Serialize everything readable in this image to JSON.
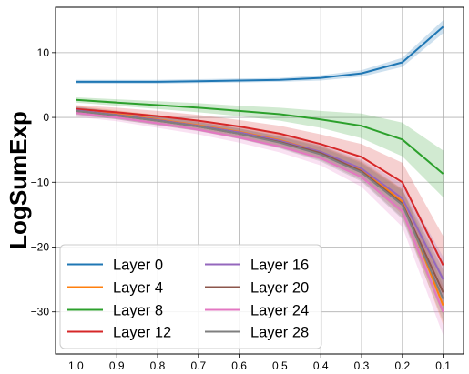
{
  "chart_data": {
    "type": "line",
    "ylabel": "LogSumExp",
    "xlabel": "",
    "x": [
      1.0,
      0.9,
      0.8,
      0.7,
      0.6,
      0.5,
      0.4,
      0.3,
      0.2,
      0.1
    ],
    "x_tick_labels": [
      "1.0",
      "0.9",
      "0.8",
      "0.7",
      "0.6",
      "0.5",
      "0.4",
      "0.3",
      "0.2",
      "0.1"
    ],
    "x_reversed": true,
    "y_ticks": [
      10,
      0,
      -10,
      -20,
      -30
    ],
    "y_tick_labels": [
      "10",
      "0",
      "−10",
      "−20",
      "−30"
    ],
    "ylim": [
      -36.5,
      17
    ],
    "xlim": [
      1.05,
      0.05
    ],
    "grid": true,
    "legend": {
      "placement": "lower-left",
      "columns": 2
    },
    "series": [
      {
        "name": "Layer 0",
        "color": "#1f77b4",
        "values": [
          5.5,
          5.5,
          5.5,
          5.6,
          5.7,
          5.8,
          6.1,
          6.8,
          8.5,
          14.0
        ],
        "band": [
          0.3,
          0.3,
          0.3,
          0.3,
          0.3,
          0.3,
          0.4,
          0.5,
          0.7,
          1.0
        ]
      },
      {
        "name": "Layer 4",
        "color": "#ff7f0e",
        "values": [
          1.2,
          0.5,
          -0.3,
          -1.2,
          -2.2,
          -3.5,
          -5.3,
          -8.0,
          -13.0,
          -29.0
        ],
        "band": [
          0.6,
          0.6,
          0.7,
          0.7,
          0.8,
          0.9,
          1.0,
          1.3,
          2.0,
          3.0
        ]
      },
      {
        "name": "Layer 8",
        "color": "#2ca02c",
        "values": [
          2.7,
          2.3,
          1.9,
          1.5,
          1.0,
          0.5,
          -0.3,
          -1.3,
          -3.4,
          -8.7
        ],
        "band": [
          0.4,
          0.5,
          0.6,
          0.7,
          0.8,
          1.0,
          1.3,
          1.9,
          2.6,
          3.6
        ]
      },
      {
        "name": "Layer 12",
        "color": "#d62728",
        "values": [
          1.3,
          0.8,
          0.2,
          -0.5,
          -1.4,
          -2.5,
          -4.1,
          -6.1,
          -10.0,
          -22.8
        ],
        "band": [
          0.6,
          0.7,
          0.8,
          0.9,
          1.0,
          1.2,
          1.5,
          2.0,
          3.0,
          4.5
        ]
      },
      {
        "name": "Layer 16",
        "color": "#9467bd",
        "values": [
          1.1,
          0.4,
          -0.4,
          -1.3,
          -2.3,
          -3.6,
          -5.3,
          -7.9,
          -12.5,
          -25.0
        ],
        "band": [
          0.6,
          0.6,
          0.7,
          0.7,
          0.8,
          0.9,
          1.1,
          1.4,
          2.2,
          3.5
        ]
      },
      {
        "name": "Layer 20",
        "color": "#8c564b",
        "values": [
          1.0,
          0.3,
          -0.5,
          -1.4,
          -2.5,
          -3.8,
          -5.5,
          -8.3,
          -13.3,
          -27.0
        ],
        "band": [
          0.6,
          0.6,
          0.7,
          0.7,
          0.8,
          0.9,
          1.1,
          1.4,
          2.2,
          3.5
        ]
      },
      {
        "name": "Layer 24",
        "color": "#e377c2",
        "values": [
          0.7,
          0.0,
          -0.9,
          -1.9,
          -3.1,
          -4.5,
          -6.3,
          -9.2,
          -14.5,
          -30.0
        ],
        "band": [
          0.6,
          0.6,
          0.7,
          0.7,
          0.8,
          0.9,
          1.1,
          1.5,
          2.4,
          3.6
        ]
      },
      {
        "name": "Layer 28",
        "color": "#7f7f7f",
        "values": [
          1.0,
          0.3,
          -0.5,
          -1.4,
          -2.5,
          -3.9,
          -5.7,
          -8.5,
          -13.5,
          -28.0
        ],
        "band": [
          0.6,
          0.6,
          0.7,
          0.7,
          0.8,
          0.9,
          1.1,
          1.4,
          2.2,
          3.5
        ]
      }
    ]
  }
}
